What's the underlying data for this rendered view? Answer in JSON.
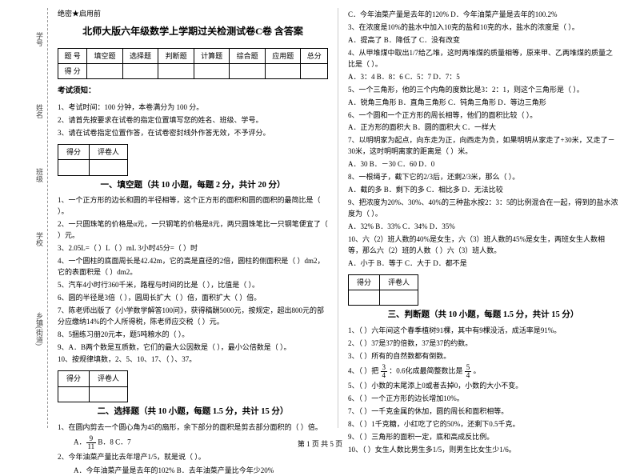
{
  "binding": {
    "b1": "学号",
    "b2": "姓名",
    "b3": "班级",
    "b4": "学校",
    "b5": "乡镇(街道)",
    "marks": "题"
  },
  "secret": "绝密★启用前",
  "title": "北师大版六年级数学上学期过关检测试卷C卷 含答案",
  "score_header": [
    "题 号",
    "填空题",
    "选择题",
    "判断题",
    "计算题",
    "综合题",
    "应用题",
    "总分"
  ],
  "score_row": "得 分",
  "notice_h": "考试须知：",
  "notices": [
    "1、考试时间：100 分钟，本卷满分为 100 分。",
    "2、请首先按要求在试卷的指定位置填写您的姓名、班级、学号。",
    "3、请在试卷指定位置作答，在试卷密封线外作答无效，不予评分。"
  ],
  "gp": [
    "得分",
    "评卷人"
  ],
  "sec1": {
    "title": "一、填空题（共 10 小题，每题 2 分，共计 20 分）",
    "q": [
      "1、一个正方形的边长和圆的半径相等，这个正方形的面积和圆的面积的最简比是（  ）。",
      "2、一只圆珠笔的价格是α元，一只钢笔的价格是8元，两只圆珠笔比一只钢笔便宜了（  ）元。",
      "3、2.05L=（  ）L（  ）mL      3小时45分=（  ）时",
      "4、一个圆柱的底面周长是42.42m，它的高是直径的2倍，圆柱的侧面积是（  ）dm2，它的表面积是（  ）dm2。",
      "5、汽车4小时行360千米，路程与时间的比是（  ），比值是（  ）。",
      "6、圆的半径是3倍（  ），圆周长扩大（  ）倍，面积扩大（  ）倍。",
      "7、陈老师出版了《小学数学解答100问》，获得稿酬5000元，按规定，超出800元的部分应缴纳14%的个人所得税，陈老师应交税（  ）元。",
      "8、5捆练习册20元本，题5吨粮水的（  ）。",
      "9、A．B两个数是互质数，它们的最大公因数是（  ），最小公倍数是（  ）。",
      "10、按规律填数，2、5、10、17、（  ）、37。"
    ]
  },
  "sec2": {
    "title": "二、选择题（共 10 小题，每题 1.5 分，共计 15 分）",
    "q1": "1、在圆内剪去一个圆心角为45的扇形，余下部分的面积是剪去部分面积的（  ）倍。",
    "q1opts": "A．          B．8          C．7",
    "q1frac": {
      "n": "9",
      "d": "11"
    },
    "q2": "2、今年油菜产量比去年增产1/5，就是说（  ）。",
    "q2opts": "A．今年油菜产量是去年的102%      B．去年油菜产量比今年少20%",
    "right": [
      "        C．今年油菜产量是去年的120%      D．今年油菜产量是去年的100.2%",
      "3、在浓度是10%的盐水中加入10克的盐和10克的水，盐水的浓度是（  ）。",
      "    A．提高了      B．降低了      C．没有改变",
      "4、从甲堆煤中取出1/7给乙堆，这时两堆煤的质量相等，原来甲、乙两堆煤的质量之比是（  ）。",
      "    A．3：4      B．8：6      C．5：7      D．7：5",
      "5、一个三角形，他的三个内角的度数比是3：2：1，则这个三角形是（  ）。",
      "    A．锐角三角形  B．直角三角形  C．钝角三角形  D．等边三角形",
      "6、一个圆和一个正方形的周长相等，他们的面积比较（  ）。",
      "    A．正方形的面积大    B．圆的面积大    C．一样大",
      "7、以明明家为起点，向东走为正，向西走为负，如果明明从家走了+30米，又走了－30米，这时明明离家的距离是（  ）米。",
      "    A．30      B．－30      C．60      D．0",
      "8、一根绳子，截下它的2/3后，还剩2/3米，那么（  ）。",
      "    A．截的多    B．剩下的多    C．相比多    D．无法比较",
      "9、把浓度为20%、30%、40%的三种盐水按2：3：5的比例混合在一起，得到的盐水浓度为（  ）。",
      "    A．32%      B．33%      C．34%      D．35%",
      "10、六（2）班人数的40%是女生，六（3）班人数的45%是女生，两班女生人数相等，那么六（2）班的人数（  ）六（3）班人数。",
      "    A．小于      B．等于      C．大于      D．都不是"
    ]
  },
  "sec3": {
    "title": "三、判断题（共 10 小题，每题 1.5 分，共计 15 分）",
    "q": [
      "1、（  ）六年间这个春季植树91棵，其中有9棵没活，成活率是91%。",
      "2、（  ）37是37的倍数，37是37的约数。",
      "3、（  ）所有的自然数都有倒数。",
      "4、（  ）把      ：0.6化成最简整数比是      。",
      "5、（  ）小数的末尾添上0或者去掉0，小数的大小不变。",
      "6、（  ）一个正方形的边长增加10%。",
      "7、（  ）一千克金属的休加，圆的周长和面积相等。",
      "8、（  ）1千克糖，小红吃了它的50%，还剩下0.5千克。",
      "9、（  ）三角形的面积一定，底和高成反比例。",
      "10、（  ）女生人数比男生多1/5，则男生比女生少1/6。"
    ],
    "frac1": {
      "n": "3",
      "d": "4"
    },
    "frac2": {
      "n": "5",
      "d": "4"
    }
  },
  "footer": "第 1 页 共 5 页"
}
